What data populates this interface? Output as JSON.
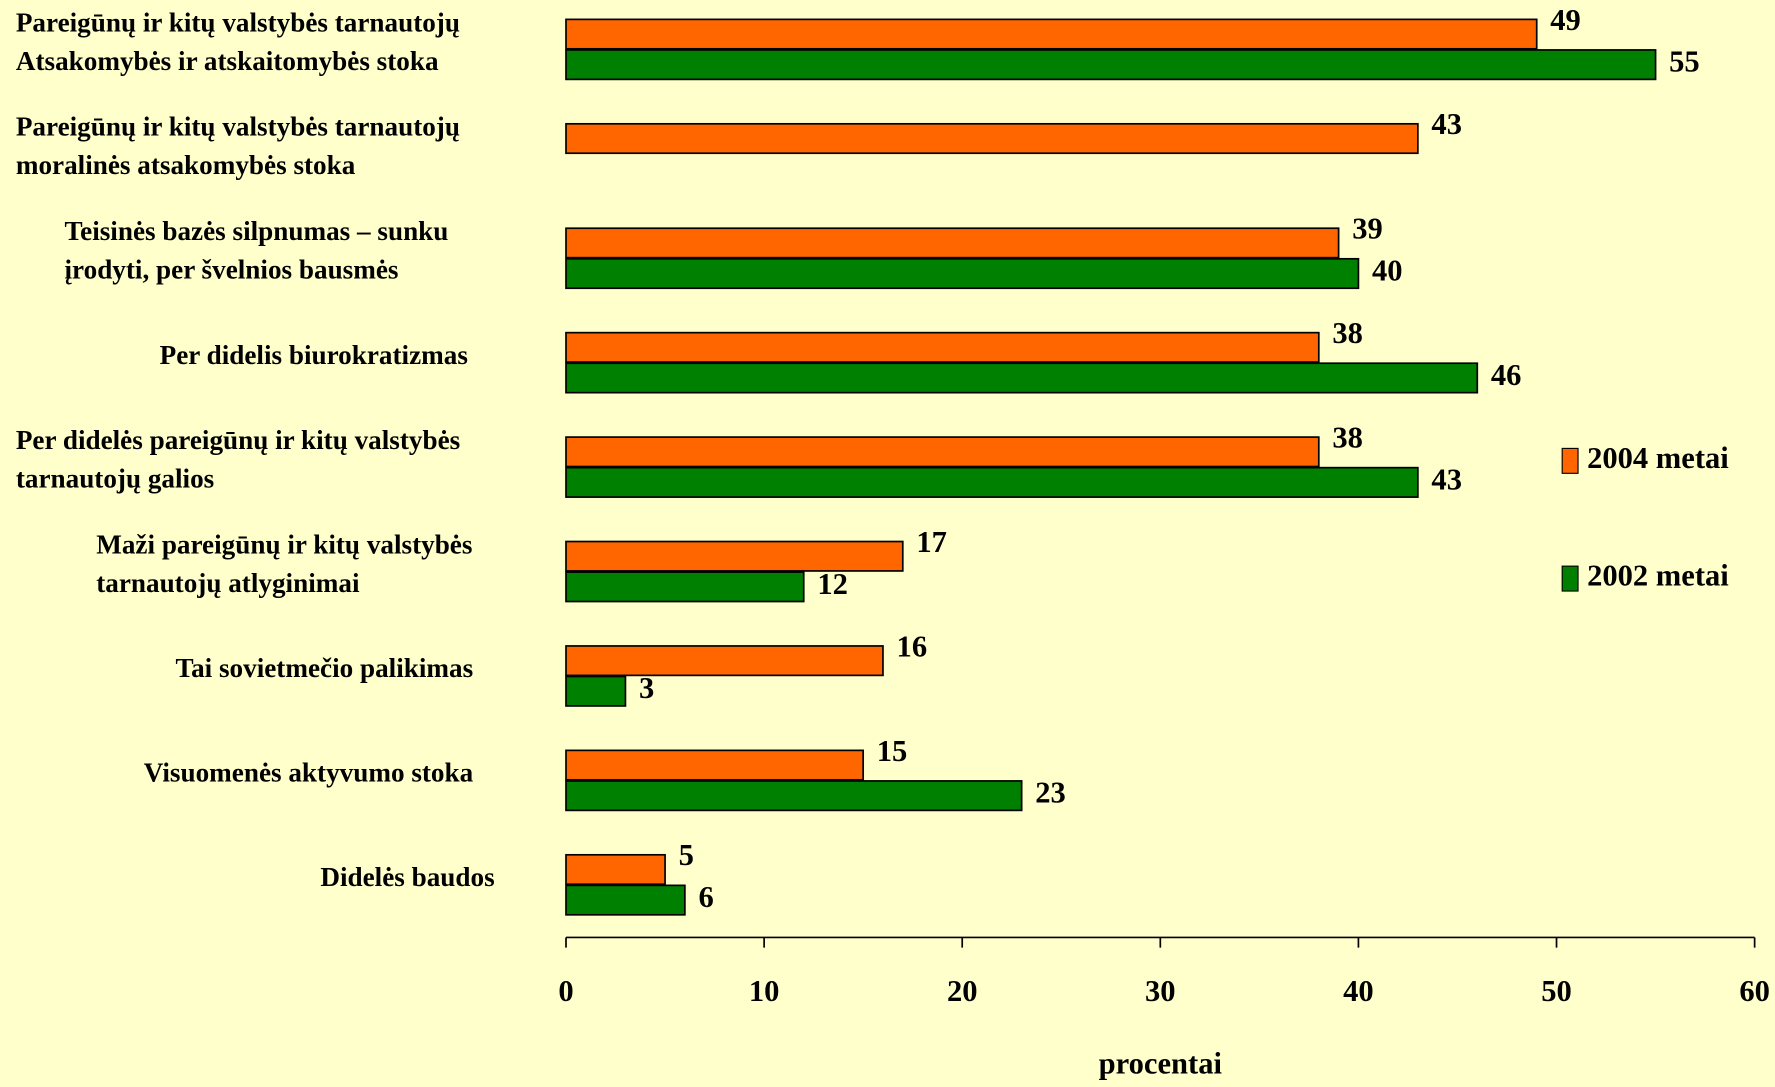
{
  "chart_data": {
    "type": "hbar",
    "categories": [
      [
        "Pareigūnų ir kitų valstybės tarnautojų",
        "Atsakomybės  ir atskaitomybės stoka"
      ],
      [
        "Pareigūnų ir kitų valstybės tarnautojų",
        "moralinės atsakomybės stoka"
      ],
      [
        "Teisinės bazės silpnumas – sunku",
        "įrodyti, per švelnios bausmės"
      ],
      [
        "Per didelis biurokratizmas"
      ],
      [
        "Per didelės pareigūnų ir kitų valstybės",
        "tarnautojų galios"
      ],
      [
        "Maži pareigūnų ir kitų valstybės",
        " tarnautojų atlyginimai"
      ],
      [
        "Tai sovietmečio palikimas"
      ],
      [
        "Visuomenės aktyvumo stoka"
      ],
      [
        "Didelės baudos"
      ]
    ],
    "series": [
      {
        "name": "2004 metai",
        "color": "#ff6600",
        "values": [
          49,
          43,
          39,
          38,
          38,
          17,
          16,
          15,
          5
        ]
      },
      {
        "name": "2002 metai",
        "color": "#008000",
        "values": [
          55,
          null,
          40,
          46,
          43,
          12,
          3,
          23,
          6
        ]
      }
    ],
    "xlim": [
      0,
      60
    ],
    "xticks": [
      0,
      10,
      20,
      30,
      40,
      50,
      60
    ],
    "xlabel": "procentai",
    "legend": "right"
  }
}
